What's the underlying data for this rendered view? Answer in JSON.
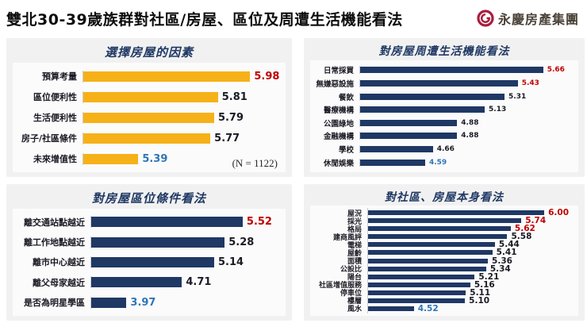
{
  "page": {
    "title": "雙北30-39歲族群對社區/房屋、區位及周遭生活機能看法",
    "brand": {
      "name": "永慶房產集團",
      "logo_color": "#a81e3f",
      "text_color": "#4a4238"
    }
  },
  "colors": {
    "high": "#c00000",
    "low": "#2e75b6",
    "normal": "#1b1b26",
    "title_navy": "#1f3864",
    "bar_yellow": "#f6b118",
    "bar_navy": "#1f3864"
  },
  "chart_data": [
    {
      "type": "bar",
      "orientation": "horizontal",
      "title": "選擇房屋的因素",
      "categories": [
        "預算考量",
        "區位便利性",
        "生活便利性",
        "房子/社區條件",
        "未來增值性"
      ],
      "values": [
        5.98,
        5.81,
        5.79,
        5.77,
        5.39
      ],
      "emphasis": [
        "high",
        "normal",
        "normal",
        "normal",
        "low"
      ],
      "bar_color": "#f6b118",
      "xlim": [
        5.1,
        6.15
      ],
      "note": "(N = 1122)",
      "grid": false,
      "legend": false
    },
    {
      "type": "bar",
      "orientation": "horizontal",
      "title": "對房屋周遭生活機能看法",
      "categories": [
        "日常採買",
        "無嫌惡設施",
        "餐飲",
        "醫療機構",
        "公園綠地",
        "金融機構",
        "學校",
        "休閒娛樂"
      ],
      "values": [
        5.66,
        5.43,
        5.31,
        5.13,
        4.88,
        4.88,
        4.66,
        4.59
      ],
      "emphasis": [
        "high",
        "high",
        "normal",
        "normal",
        "normal",
        "normal",
        "normal",
        "low"
      ],
      "bar_color": "#1f3864",
      "xlim": [
        4.0,
        5.95
      ],
      "note": "",
      "grid": false,
      "legend": false
    },
    {
      "type": "bar",
      "orientation": "horizontal",
      "title": "對房屋區位條件看法",
      "categories": [
        "離交通站點越近",
        "離工作地點越近",
        "離市中心越近",
        "離父母家越近",
        "是否為明星學區"
      ],
      "values": [
        5.52,
        5.28,
        5.14,
        4.71,
        3.97
      ],
      "emphasis": [
        "high",
        "normal",
        "normal",
        "normal",
        "low"
      ],
      "bar_color": "#1f3864",
      "xlim": [
        3.5,
        6.05
      ],
      "note": "",
      "grid": false,
      "legend": false
    },
    {
      "type": "bar",
      "orientation": "horizontal",
      "title": "對社區、房屋本身看法",
      "categories": [
        "屋況",
        "採光",
        "格局",
        "建商風評",
        "電梯",
        "屋齡",
        "面積",
        "公設比",
        "陽台",
        "社區增值服務",
        "停車位",
        "樓層",
        "風水"
      ],
      "values": [
        6.0,
        5.74,
        5.62,
        5.58,
        5.44,
        5.41,
        5.36,
        5.34,
        5.21,
        5.16,
        5.11,
        5.1,
        4.52
      ],
      "emphasis": [
        "high",
        "high",
        "high",
        "normal",
        "normal",
        "normal",
        "normal",
        "normal",
        "normal",
        "normal",
        "normal",
        "normal",
        "low"
      ],
      "bar_color": "#1f3864",
      "xlim": [
        4.0,
        6.35
      ],
      "note": "",
      "grid": false,
      "legend": false
    }
  ]
}
